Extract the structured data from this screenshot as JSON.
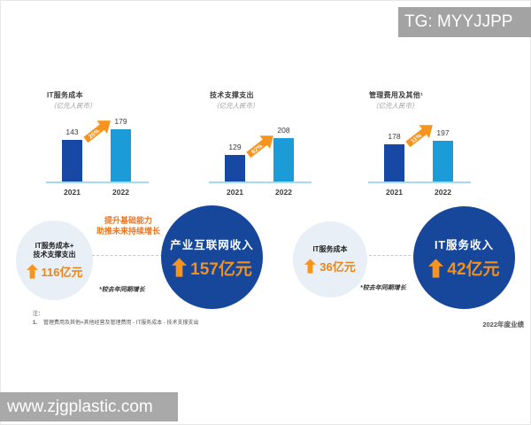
{
  "badge": {
    "tg": "TG: MYYJJPP"
  },
  "watermark": {
    "url": "www.zjgplastic.com"
  },
  "chart_data": [
    {
      "type": "bar",
      "title": "IT服务成本",
      "subtitle": "（亿元人民币）",
      "categories": [
        "2021",
        "2022"
      ],
      "values": [
        143,
        179
      ],
      "growth_label": "25%",
      "ylim": [
        0,
        200
      ],
      "grid": false,
      "legend": "none"
    },
    {
      "type": "bar",
      "title": "技术支撑支出",
      "subtitle": "（亿元人民币）",
      "categories": [
        "2021",
        "2022"
      ],
      "values": [
        129,
        208
      ],
      "growth_label": "62%",
      "ylim": [
        0,
        230
      ],
      "grid": false,
      "legend": "none"
    },
    {
      "type": "bar",
      "title": "管理费用及其他¹",
      "subtitle": "（亿元人民币）",
      "categories": [
        "2021",
        "2022"
      ],
      "values": [
        178,
        197
      ],
      "growth_label": "11%",
      "ylim": [
        0,
        220
      ],
      "grid": false,
      "legend": "none"
    }
  ],
  "highlights": {
    "growth_annotation": {
      "line1": "提升基础能力",
      "line2": "助推未来持续增长"
    },
    "yoy_footnote": "*较去年同期增长",
    "left": {
      "cost": {
        "line1": "IT服务成本+",
        "line2": "技术支撑支出",
        "value": "116亿元"
      },
      "revenue": {
        "title": "产业互联网收入",
        "value": "157亿元"
      }
    },
    "right": {
      "cost": {
        "line1": "IT服务成本",
        "value": "36亿元"
      },
      "revenue": {
        "title": "IT服务收入",
        "value": "42亿元"
      }
    }
  },
  "notes": {
    "label": "注：",
    "item_no": "1.",
    "item_text": "管理费用及其他=其他经营及管理费用 - IT服务成本 - 技术支撑支出"
  },
  "footer": {
    "page_label": "2022年度业绩"
  },
  "colors": {
    "bar_2021": "#1648A4",
    "bar_2022": "#1B9CD8",
    "accent_orange": "#F7941D",
    "value_orange": "#E8861C",
    "circle_navy": "#17479B",
    "circle_light": "#E9EFF6",
    "axis_blue": "#A6D9EF",
    "badge_gray": "#A3A3A3"
  }
}
